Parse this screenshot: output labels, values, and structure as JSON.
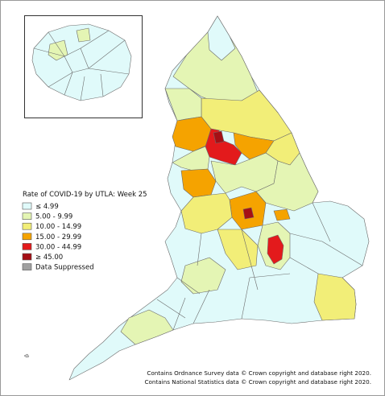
{
  "legend": {
    "title": "Rate of COVID-19 by UTLA: Week 25",
    "items": [
      {
        "label": "≤ 4.99",
        "color": "#e0fafa"
      },
      {
        "label": "5.00 - 9.99",
        "color": "#e4f5b4"
      },
      {
        "label": "10.00 - 14.99",
        "color": "#f2ee78"
      },
      {
        "label": "15.00 - 29.99",
        "color": "#f5a300"
      },
      {
        "label": "30.00 - 44.99",
        "color": "#e31a1c"
      },
      {
        "label": "≥ 45.00",
        "color": "#a50f15"
      },
      {
        "label": "Data Suppressed",
        "color": "#a0a0a0"
      }
    ]
  },
  "credits": [
    "Contains Ordnance Survey data © Crown copyright and database right 2020.",
    "Contains National Statistics data © Crown copyright and database right 2020."
  ]
}
